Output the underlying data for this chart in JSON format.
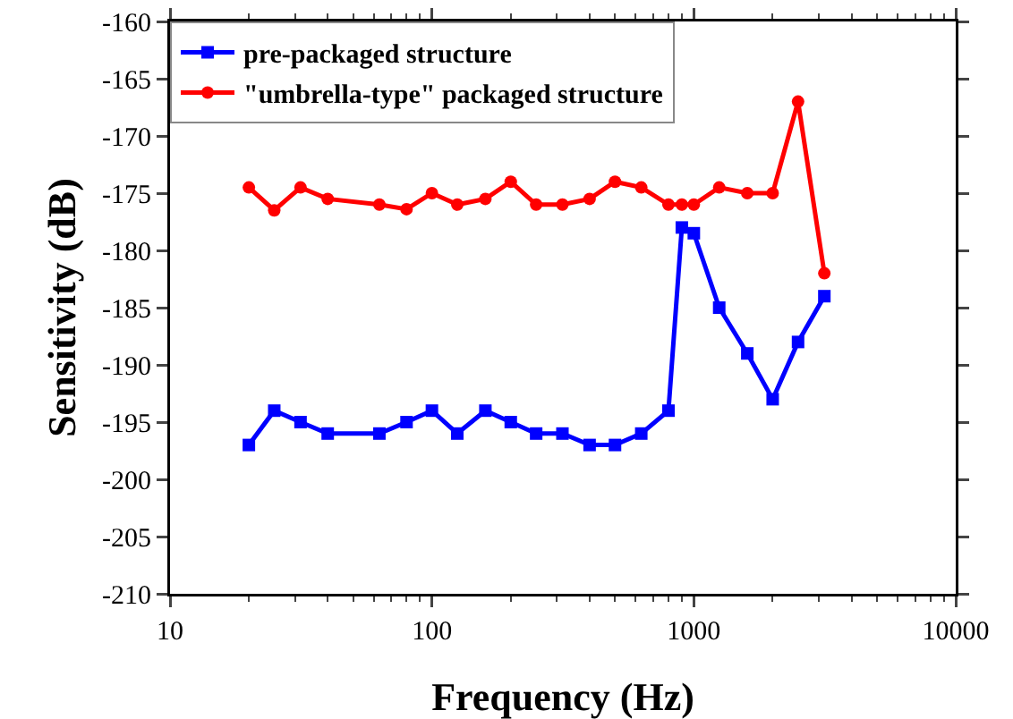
{
  "chart_data": {
    "type": "line",
    "xlabel": "Frequency (Hz)",
    "ylabel": "Sensitivity (dB)",
    "log": "x",
    "xlim": [
      10,
      10000
    ],
    "xticks": [
      10,
      100,
      1000,
      10000
    ],
    "ylim": [
      -210,
      -160
    ],
    "yticks": [
      -210,
      -205,
      -200,
      -195,
      -190,
      -185,
      -180,
      -175,
      -170,
      -165,
      -160
    ],
    "grid": false,
    "legend": "top left",
    "line_style": "solid",
    "series": [
      {
        "name": "pre-packaged structure",
        "color": "#0000ff",
        "marker": "square",
        "x": [
          20,
          25,
          31.5,
          40,
          63,
          80,
          100,
          125,
          160,
          200,
          250,
          315,
          400,
          500,
          630,
          800,
          900,
          1000,
          1250,
          1600,
          2000,
          2500,
          3150
        ],
        "values": [
          -197,
          -194,
          -195,
          -196,
          -196,
          -195,
          -194,
          -196,
          -194,
          -195,
          -196,
          -196,
          -197,
          -197,
          -196,
          -194,
          -178,
          -178.5,
          -185,
          -189,
          -193,
          -188,
          -184
        ]
      },
      {
        "name": "\"umbrella-type\" packaged structure",
        "color": "#ff0000",
        "marker": "circle",
        "x": [
          20,
          25,
          31.5,
          40,
          63,
          80,
          100,
          125,
          160,
          200,
          250,
          315,
          400,
          500,
          630,
          800,
          900,
          1000,
          1250,
          1600,
          2000,
          2500,
          3150
        ],
        "values": [
          -174.5,
          -176.5,
          -174.5,
          -175.5,
          -176,
          -176.4,
          -175,
          -176,
          -175.5,
          -174,
          -176,
          -176,
          -175.5,
          -174,
          -174.5,
          -176,
          -176,
          -176,
          -174.5,
          -175,
          -175,
          -167,
          -182
        ]
      }
    ]
  }
}
